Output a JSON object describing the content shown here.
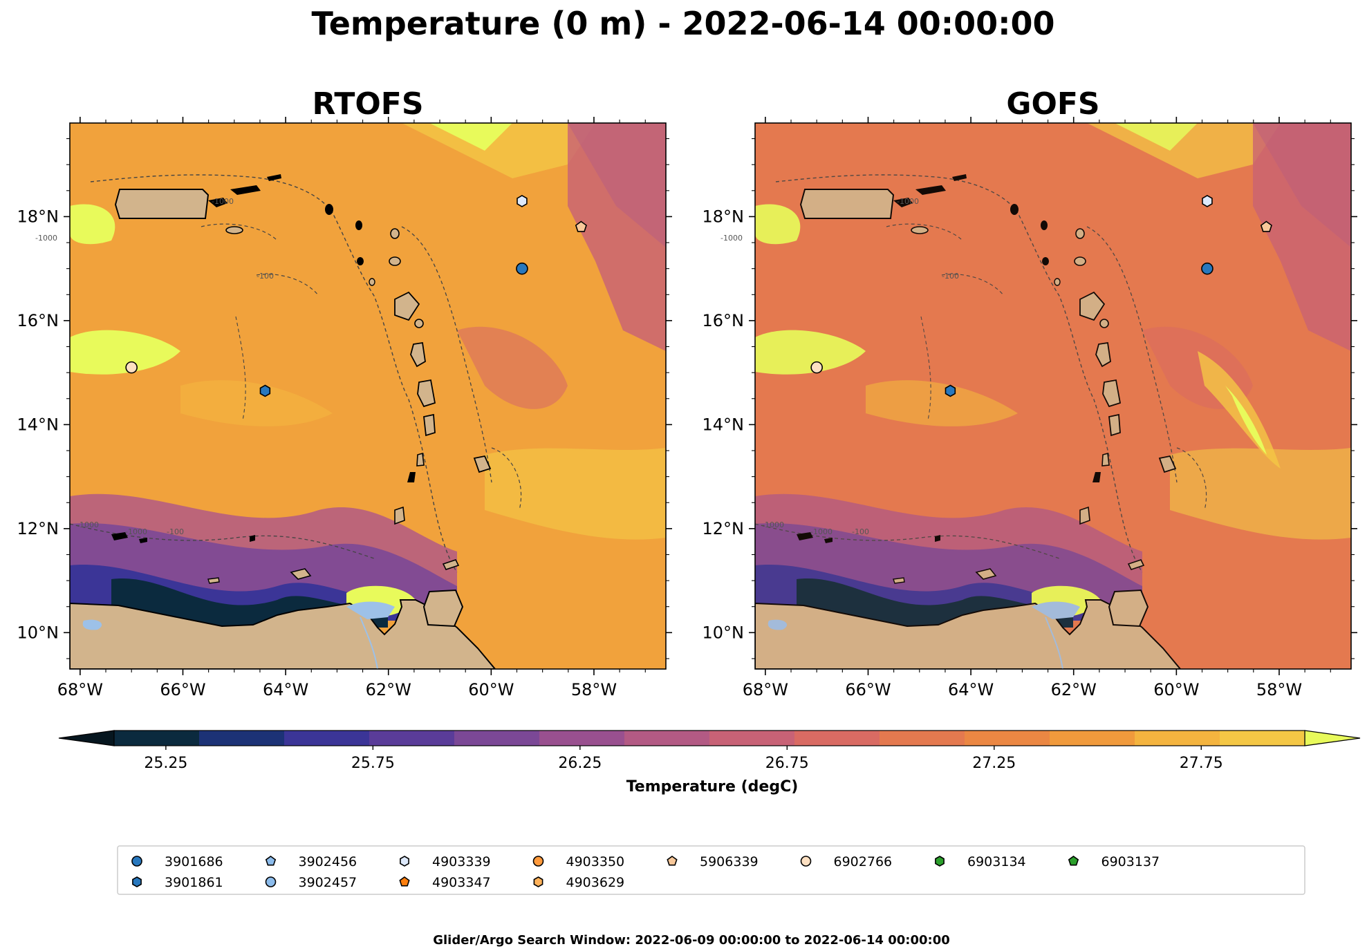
{
  "suptitle": "Temperature (0 m) - 2022-06-14 00:00:00",
  "footer": "Glider/Argo Search Window: 2022-06-09 00:00:00 to 2022-06-14 00:00:00",
  "extent": {
    "lon": [
      -68.2,
      -56.6
    ],
    "lat": [
      9.3,
      19.8
    ]
  },
  "lon_ticks": [
    {
      "value": -68,
      "label": "68°W"
    },
    {
      "value": -66,
      "label": "66°W"
    },
    {
      "value": -64,
      "label": "64°W"
    },
    {
      "value": -62,
      "label": "62°W"
    },
    {
      "value": -60,
      "label": "60°W"
    },
    {
      "value": -58,
      "label": "58°W"
    }
  ],
  "lat_ticks": [
    {
      "value": 10,
      "label": "10°N"
    },
    {
      "value": 12,
      "label": "12°N"
    },
    {
      "value": 14,
      "label": "14°N"
    },
    {
      "value": 16,
      "label": "16°N"
    },
    {
      "value": 18,
      "label": "18°N"
    }
  ],
  "panels": [
    {
      "id": "rtofs",
      "title": "RTOFS"
    },
    {
      "id": "gofs",
      "title": "GOFS"
    }
  ],
  "contour_labels": [
    "-1000",
    "-100"
  ],
  "colorbar": {
    "label": "Temperature (degC)",
    "min": 25.125,
    "max": 28.0,
    "step": 0.125,
    "extend": "both",
    "ticks": [
      "25.25",
      "25.75",
      "26.25",
      "26.75",
      "27.25",
      "27.75"
    ],
    "colors": [
      "#0b2a3e",
      "#1c3276",
      "#3b3597",
      "#5a3c99",
      "#7b4896",
      "#99508f",
      "#b35a84",
      "#c86276",
      "#d96b63",
      "#e4794f",
      "#eb8743",
      "#f09a3c",
      "#f4b43f",
      "#f4c745"
    ],
    "under_color": "#06161f",
    "over_color": "#e8fa5b"
  },
  "colors": {
    "land": "#d2b48c",
    "lake": "#9dc1e8",
    "ocean_base": "#f1a23c"
  },
  "floats": [
    {
      "id": "3901686",
      "marker": "circle",
      "color": "#2878be",
      "lon": -59.4,
      "lat": 17.0
    },
    {
      "id": "3901861",
      "marker": "hexagon",
      "color": "#2878be",
      "lon": -64.4,
      "lat": 14.65
    },
    {
      "id": "3902456",
      "marker": "pentagon",
      "color": "#8cbcec",
      "lon": null,
      "lat": null
    },
    {
      "id": "3902457",
      "marker": "circle",
      "color": "#8cbcec",
      "lon": null,
      "lat": null
    },
    {
      "id": "4903339",
      "marker": "hexagon",
      "color": "#dde9fb",
      "lon": -59.4,
      "lat": 18.3
    },
    {
      "id": "4903347",
      "marker": "pentagon",
      "color": "#ff7f0e",
      "lon": null,
      "lat": null
    },
    {
      "id": "4903350",
      "marker": "circle",
      "color": "#ff9a3c",
      "lon": null,
      "lat": null
    },
    {
      "id": "4903629",
      "marker": "hexagon",
      "color": "#ffb25b",
      "lon": null,
      "lat": null
    },
    {
      "id": "5906339",
      "marker": "pentagon",
      "color": "#f8c89a",
      "lon": -58.25,
      "lat": 17.8
    },
    {
      "id": "6902766",
      "marker": "circle",
      "color": "#fde0c2",
      "lon": -67.0,
      "lat": 15.1
    },
    {
      "id": "6903134",
      "marker": "hexagon",
      "color": "#2ca02c",
      "lon": null,
      "lat": null
    },
    {
      "id": "6903137",
      "marker": "pentagon",
      "color": "#2ca02c",
      "lon": null,
      "lat": null
    }
  ]
}
